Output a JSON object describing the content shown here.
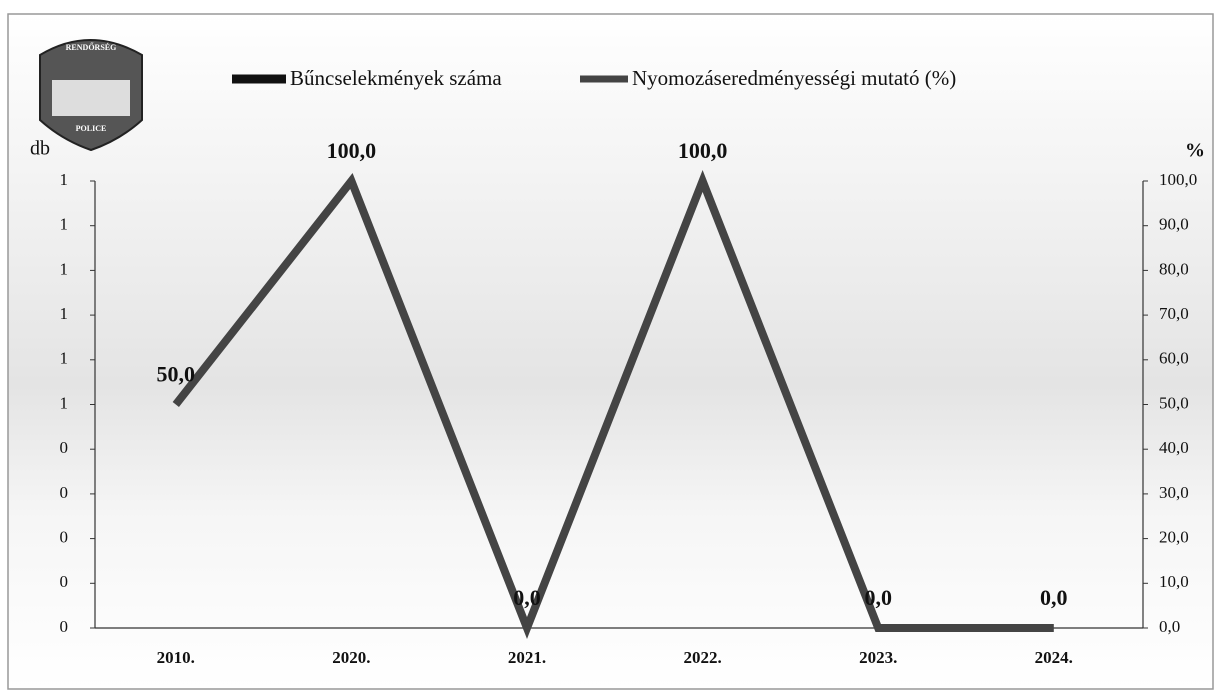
{
  "logo": {
    "top": "RENDŐRSÉG",
    "bottom": "POLICE"
  },
  "chart_data": {
    "type": "bar-line",
    "y_label": "db",
    "y2_label": "%",
    "categories": [
      "2010.",
      "2020.",
      "2021.",
      "2022.",
      "2023.",
      "2024."
    ],
    "series": [
      {
        "name": "Bűncselekmények száma",
        "color": "#111111",
        "values": [
          0,
          0,
          0,
          0,
          0,
          0
        ]
      },
      {
        "name": "Nyomozáseredményességi mutató (%)",
        "color": "#444444",
        "axis": "y2",
        "values": [
          50,
          100,
          0,
          100,
          0,
          0
        ],
        "value_labels": [
          "50,0",
          "100,0",
          "0,0",
          "100,0",
          "0,0",
          "0,0"
        ]
      }
    ],
    "ylim": [
      0,
      1
    ],
    "yticks": [
      {
        "value": 0,
        "label": "0"
      },
      {
        "value": 0.1,
        "label": "0"
      },
      {
        "value": 0.2,
        "label": "0"
      },
      {
        "value": 0.3,
        "label": "0"
      },
      {
        "value": 0.4,
        "label": "0"
      },
      {
        "value": 0.5,
        "label": "1"
      },
      {
        "value": 0.6,
        "label": "1"
      },
      {
        "value": 0.7,
        "label": "1"
      },
      {
        "value": 0.8,
        "label": "1"
      },
      {
        "value": 0.9,
        "label": "1"
      },
      {
        "value": 1,
        "label": "1"
      }
    ],
    "y2lim": [
      0,
      100
    ],
    "y2ticks": [
      {
        "value": 0,
        "label": "0,0"
      },
      {
        "value": 10,
        "label": "10,0"
      },
      {
        "value": 20,
        "label": "20,0"
      },
      {
        "value": 30,
        "label": "30,0"
      },
      {
        "value": 40,
        "label": "40,0"
      },
      {
        "value": 50,
        "label": "50,0"
      },
      {
        "value": 60,
        "label": "60,0"
      },
      {
        "value": 70,
        "label": "70,0"
      },
      {
        "value": 80,
        "label": "80,0"
      },
      {
        "value": 90,
        "label": "90,0"
      },
      {
        "value": 100,
        "label": "100,0"
      }
    ],
    "grid": false
  }
}
